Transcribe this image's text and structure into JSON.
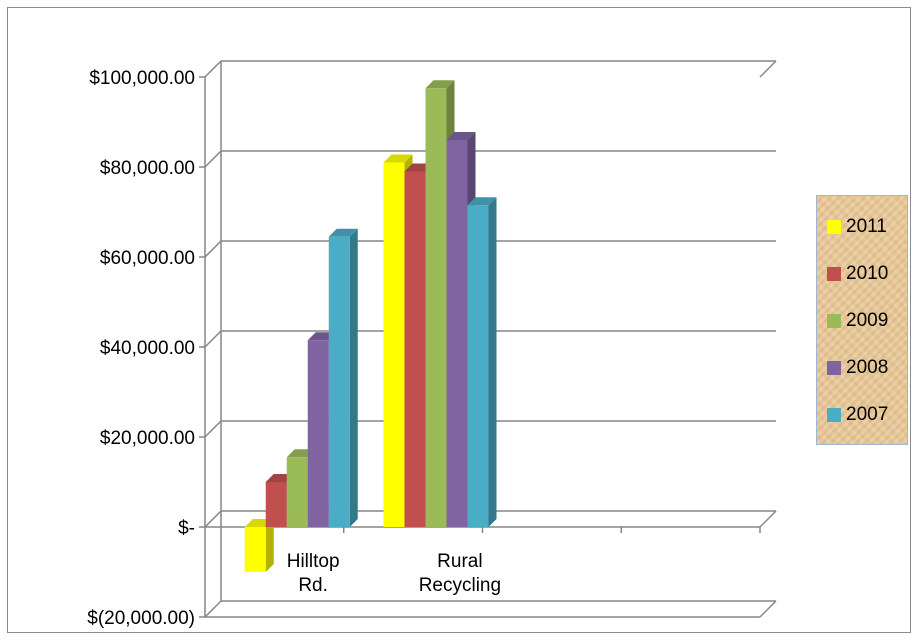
{
  "chart_data": {
    "type": "bar",
    "title": "",
    "xlabel": "",
    "ylabel": "",
    "categories": [
      "Hilltop Rd.",
      "Rural Recycling"
    ],
    "category_label_lines": [
      [
        "Hilltop",
        "Rd."
      ],
      [
        "Rural",
        "Recycling"
      ]
    ],
    "series": [
      {
        "name": "2011",
        "color": "#ffff00",
        "values": [
          -10000,
          81000
        ]
      },
      {
        "name": "2010",
        "color": "#c0504d",
        "values": [
          10000,
          79000
        ]
      },
      {
        "name": "2009",
        "color": "#9bbb59",
        "values": [
          15500,
          97500
        ]
      },
      {
        "name": "2008",
        "color": "#8064a2",
        "values": [
          41500,
          86000
        ]
      },
      {
        "name": "2007",
        "color": "#4bacc6",
        "values": [
          64500,
          71500
        ]
      }
    ],
    "ylim": [
      -20000,
      100000
    ],
    "y_ticks": [
      {
        "value": 100000,
        "label": "$100,000.00"
      },
      {
        "value": 80000,
        "label": "$80,000.00"
      },
      {
        "value": 60000,
        "label": "$60,000.00"
      },
      {
        "value": 40000,
        "label": "$40,000.00"
      },
      {
        "value": 20000,
        "label": "$20,000.00"
      },
      {
        "value": 0,
        "label": "$-"
      },
      {
        "value": -20000,
        "label": "$(20,000.00)"
      }
    ],
    "grid": true,
    "legend_position": "right",
    "three_d": true
  }
}
